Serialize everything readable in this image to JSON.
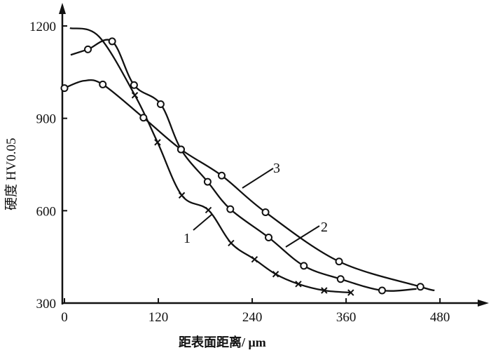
{
  "chart_data": {
    "type": "line",
    "title": "",
    "xlabel": "距表面距离/ μm",
    "ylabel": "硬度 HV0.05",
    "xlim": [
      0,
      520
    ],
    "ylim": [
      300,
      1250
    ],
    "x_ticks": [
      "0",
      "120",
      "240",
      "360",
      "480"
    ],
    "y_ticks": [
      "300",
      "600",
      "900",
      "1200"
    ],
    "x_tick_values": [
      0,
      120,
      240,
      360,
      480
    ],
    "y_tick_values": [
      300,
      600,
      900,
      1200
    ],
    "grid": false,
    "series": [
      {
        "name": "1",
        "marker": "x",
        "line_points": [
          [
            7,
            1193
          ],
          [
            44,
            1166
          ],
          [
            90,
            975
          ],
          [
            119,
            822
          ],
          [
            150,
            650
          ],
          [
            184,
            602
          ],
          [
            213,
            495
          ],
          [
            243,
            442
          ],
          [
            270,
            394
          ],
          [
            299,
            362
          ],
          [
            332,
            341
          ],
          [
            366,
            334
          ]
        ],
        "markers": [
          [
            90,
            975
          ],
          [
            119,
            822
          ],
          [
            150,
            650
          ],
          [
            184,
            602
          ],
          [
            213,
            495
          ],
          [
            243,
            442
          ],
          [
            270,
            394
          ],
          [
            299,
            362
          ],
          [
            332,
            341
          ],
          [
            366,
            334
          ]
        ]
      },
      {
        "name": "2",
        "marker": "o",
        "line_points": [
          [
            8,
            1106
          ],
          [
            30,
            1124
          ],
          [
            61,
            1150
          ],
          [
            89,
            1008
          ],
          [
            123,
            946
          ],
          [
            149,
            799
          ],
          [
            183,
            694
          ],
          [
            212,
            605
          ],
          [
            261,
            513
          ],
          [
            306,
            421
          ],
          [
            353,
            378
          ],
          [
            406,
            341
          ],
          [
            450,
            346
          ]
        ],
        "markers": [
          [
            30,
            1124
          ],
          [
            61,
            1150
          ],
          [
            89,
            1008
          ],
          [
            123,
            946
          ],
          [
            149,
            799
          ],
          [
            183,
            694
          ],
          [
            212,
            605
          ],
          [
            261,
            513
          ],
          [
            306,
            421
          ],
          [
            353,
            378
          ],
          [
            406,
            341
          ]
        ]
      },
      {
        "name": "3",
        "marker": "o",
        "line_points": [
          [
            0,
            998
          ],
          [
            25,
            1022
          ],
          [
            49,
            1010
          ],
          [
            101,
            902
          ],
          [
            149,
            799
          ],
          [
            201,
            714
          ],
          [
            257,
            595
          ],
          [
            351,
            435
          ],
          [
            455,
            353
          ],
          [
            473,
            341
          ]
        ],
        "markers": [
          [
            0,
            998
          ],
          [
            49,
            1010
          ],
          [
            101,
            902
          ],
          [
            149,
            799
          ],
          [
            201,
            714
          ],
          [
            257,
            595
          ],
          [
            351,
            435
          ],
          [
            455,
            353
          ]
        ]
      }
    ]
  }
}
